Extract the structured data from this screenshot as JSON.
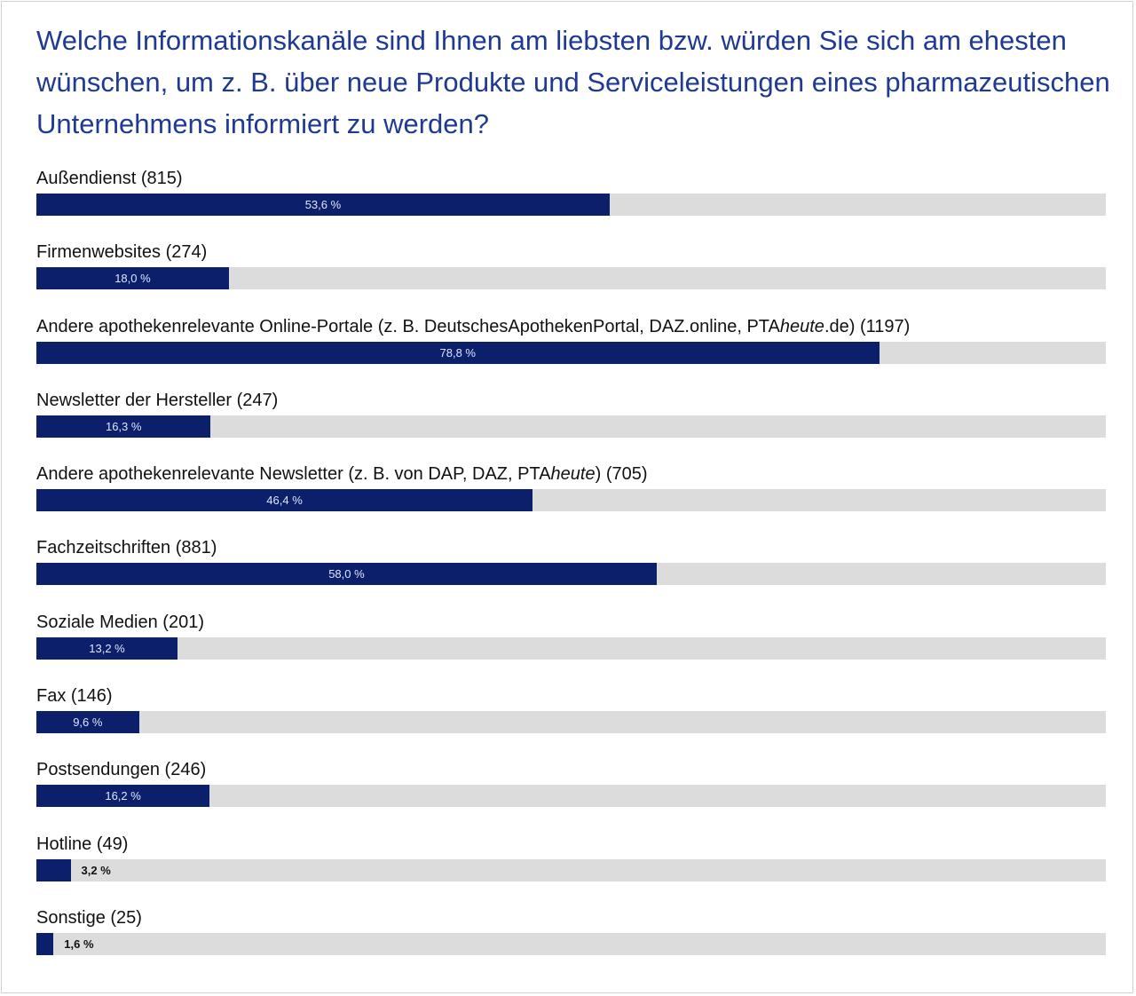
{
  "title": "Welche Informationskanäle sind Ihnen am liebsten bzw. würden Sie sich am ehesten wünschen, um z. B. über neue Produkte und Serviceleistungen eines pharmazeutischen Unternehmens informiert zu werden?",
  "colors": {
    "title": "#1f3a93",
    "bar": "#0b1f6b",
    "track": "#dcdcdc"
  },
  "chart_data": {
    "type": "bar",
    "orientation": "horizontal",
    "xlim": [
      0,
      100
    ],
    "unit": "%",
    "categories": [
      "Außendienst (815)",
      "Firmenwebsites (274)",
      "Andere apothekenrelevante Online-Portale (z. B. DeutschesApothekenPortal, DAZ.online, PTAheute.de) (1197)",
      "Newsletter der Hersteller (247)",
      "Andere apothekenrelevante Newsletter (z. B. von DAP, DAZ, PTAheute) (705)",
      "Fachzeitschriften (881)",
      "Soziale Medien (201)",
      "Fax (146)",
      "Postsendungen (246)",
      "Hotline (49)",
      "Sonstige (25)"
    ],
    "values": [
      53.6,
      18.0,
      78.8,
      16.3,
      46.4,
      58.0,
      13.2,
      9.6,
      16.2,
      3.2,
      1.6
    ],
    "value_labels": [
      "53,6 %",
      "18,0 %",
      "78,8 %",
      "16,3 %",
      "46,4 %",
      "58,0 %",
      "13,2 %",
      "9,6 %",
      "16,2 %",
      "3,2 %",
      "1,6 %"
    ]
  }
}
